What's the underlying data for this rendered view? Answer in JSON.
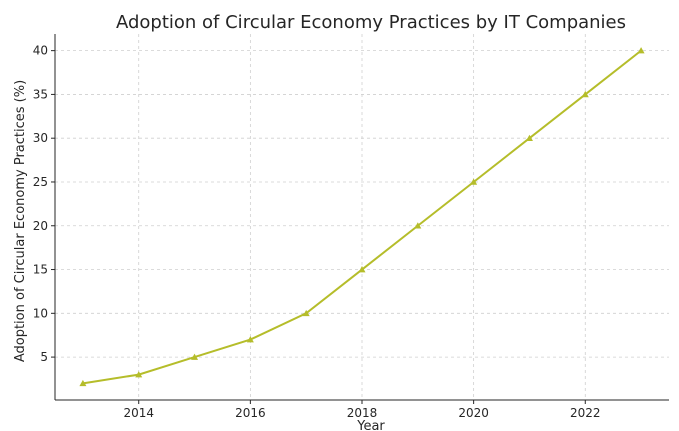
{
  "chart_data": {
    "type": "line",
    "title": "Adoption of Circular Economy Practices by IT Companies",
    "xlabel": "Year",
    "ylabel": "Adoption of Circular Economy Practices (%)",
    "x": [
      2013,
      2014,
      2015,
      2016,
      2017,
      2018,
      2019,
      2020,
      2021,
      2022,
      2023
    ],
    "series": [
      {
        "values": [
          2,
          3,
          5,
          7,
          10,
          15,
          20,
          25,
          30,
          35,
          40
        ],
        "color": "#b5bd2a",
        "marker": "triangle-up"
      }
    ],
    "xlim": [
      2012.5,
      2023.5
    ],
    "ylim": [
      0.1,
      41.9
    ],
    "xticks": [
      2014,
      2016,
      2018,
      2020,
      2022
    ],
    "yticks": [
      5,
      10,
      15,
      20,
      25,
      30,
      35,
      40
    ],
    "grid": true,
    "legend": "none"
  }
}
